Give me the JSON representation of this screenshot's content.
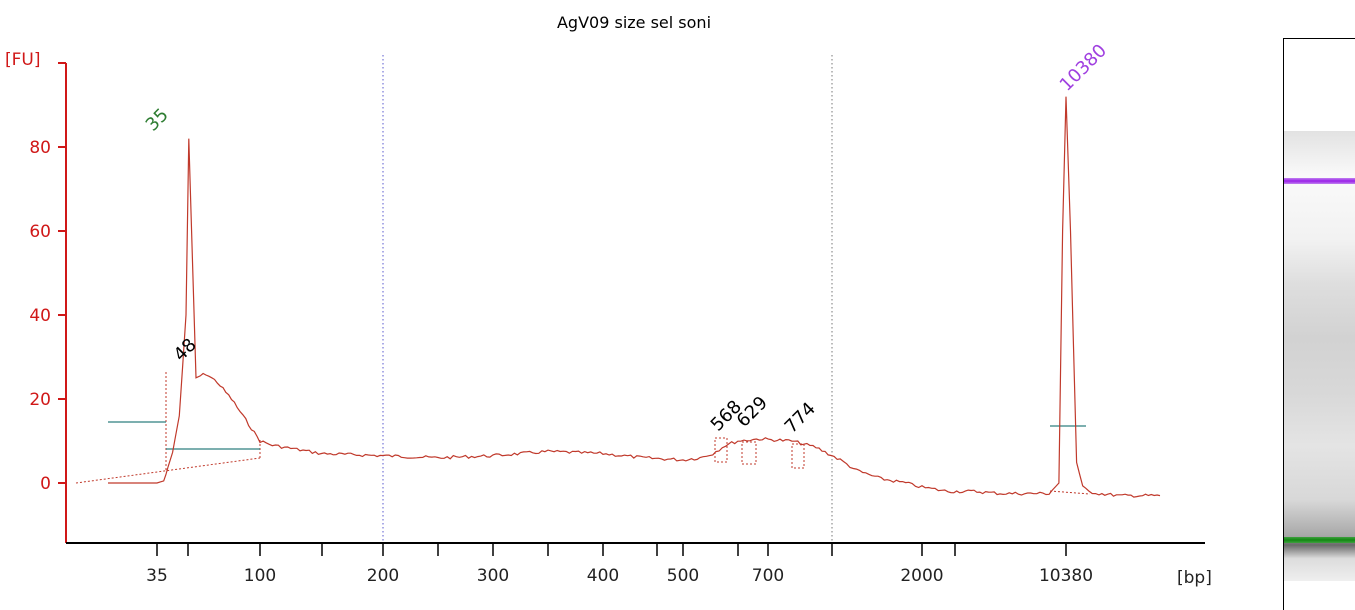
{
  "chart_data": {
    "type": "line",
    "title": "AgV09 size sel soni",
    "ylabel": "[FU]",
    "xlabel": "[bp]",
    "ylim": [
      -14,
      100
    ],
    "yticks": [
      0,
      20,
      40,
      60,
      80
    ],
    "xticks": [
      "35",
      "",
      "100",
      "",
      "200",
      "",
      "300",
      "",
      "400",
      "",
      "500",
      "",
      "700",
      "",
      "2000",
      "",
      "10380"
    ],
    "peak_labels": [
      {
        "text": "35",
        "color": "#2e7d32"
      },
      {
        "text": "48",
        "color": "#000000"
      },
      {
        "text": "568",
        "color": "#000000"
      },
      {
        "text": "629",
        "color": "#000000"
      },
      {
        "text": "774",
        "color": "#000000"
      },
      {
        "text": "10380",
        "color": "#a040e0"
      }
    ],
    "series": [
      {
        "color": "#c0392b",
        "x_migration": [
          30,
          35,
          38,
          39,
          40,
          42,
          43,
          45,
          48,
          50,
          55,
          58,
          62,
          70,
          80,
          90,
          100,
          110,
          130,
          150,
          200,
          250,
          300,
          350,
          400,
          450,
          500,
          540,
          570,
          600,
          629,
          680,
          774,
          850,
          1000,
          1200,
          1500,
          1800,
          2000,
          2500,
          3000,
          4000,
          5000,
          7000,
          9000,
          9800,
          10100,
          10380,
          10600,
          10900,
          11200,
          11500,
          12000,
          13000,
          15000
        ],
        "values": [
          0,
          0,
          0.5,
          2,
          4,
          7,
          10,
          16,
          40,
          82,
          25,
          25.5,
          26,
          24,
          20,
          15,
          10,
          9,
          8,
          7,
          6.5,
          6,
          6.5,
          7.5,
          7,
          6,
          5.5,
          6,
          7,
          9,
          10,
          10.5,
          10,
          8.5,
          5.5,
          3,
          1,
          0,
          -1,
          -1.5,
          -2,
          -2,
          -2.5,
          -2.5,
          -2.5,
          0,
          60,
          92,
          60,
          5,
          -1,
          -2,
          -2.5,
          -3,
          -3
        ]
      }
    ],
    "grid": false,
    "colors": {
      "axis": "#d01818",
      "trace": "#c0392b",
      "ladder_lower": "#1a8c1a",
      "ladder_upper": "#a020f0"
    }
  }
}
